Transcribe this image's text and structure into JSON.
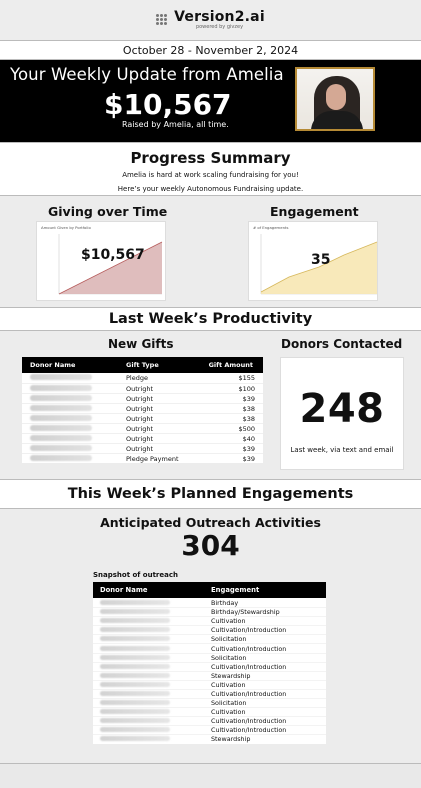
{
  "brand": {
    "name": "Version2.ai",
    "powered": "powered by",
    "partner": "givzey"
  },
  "date_range": "October 28 - November 2, 2024",
  "hero": {
    "title": "Your Weekly Update from Amelia",
    "amount": "$10,567",
    "subtitle": "Raised by Amelia, all time."
  },
  "progress": {
    "title": "Progress Summary",
    "line1": "Amelia is hard at work scaling fundraising for you!",
    "line2": "Here’s your weekly Autonomous Fundraising update."
  },
  "giving_over_time": {
    "title": "Giving over Time",
    "chart_caption": "Amount Given by Portfolio",
    "big_value": "$10,567",
    "colors": {
      "fill": "#d9b2b2",
      "stroke": "#b65c5c"
    }
  },
  "engagement": {
    "title": "Engagement",
    "chart_caption": "# of Engagements",
    "big_value": "35",
    "colors": {
      "fill": "#f7e7b3",
      "stroke": "#d6b85c"
    }
  },
  "last_week": {
    "title": "Last Week’s Productivity",
    "new_gifts": {
      "title": "New Gifts",
      "columns": [
        "Donor Name",
        "Gift Type",
        "Gift Amount"
      ],
      "rows": [
        {
          "type": "Pledge",
          "amount": "$155"
        },
        {
          "type": "Outright",
          "amount": "$100"
        },
        {
          "type": "Outright",
          "amount": "$39"
        },
        {
          "type": "Outright",
          "amount": "$38"
        },
        {
          "type": "Outright",
          "amount": "$38"
        },
        {
          "type": "Outright",
          "amount": "$500"
        },
        {
          "type": "Outright",
          "amount": "$40"
        },
        {
          "type": "Outright",
          "amount": "$39"
        },
        {
          "type": "Pledge Payment",
          "amount": "$39"
        }
      ]
    },
    "donors_contacted": {
      "title": "Donors Contacted",
      "value": "248",
      "caption": "Last week, via text and email"
    }
  },
  "this_week": {
    "title": "This Week’s Planned Engagements",
    "subtitle": "Anticipated Outreach Activities",
    "value": "304",
    "snapshot_title": "Snapshot of outreach",
    "columns": [
      "Donor Name",
      "Engagement"
    ],
    "rows": [
      {
        "engagement": "Birthday"
      },
      {
        "engagement": "Birthday/Stewardship"
      },
      {
        "engagement": "Cultivation"
      },
      {
        "engagement": "Cultivation/Introduction"
      },
      {
        "engagement": "Solicitation"
      },
      {
        "engagement": "Cultivation/Introduction"
      },
      {
        "engagement": "Solicitation"
      },
      {
        "engagement": "Cultivation/Introduction"
      },
      {
        "engagement": "Stewardship"
      },
      {
        "engagement": "Cultivation"
      },
      {
        "engagement": "Cultivation/Introduction"
      },
      {
        "engagement": "Solicitation"
      },
      {
        "engagement": "Cultivation"
      },
      {
        "engagement": "Cultivation/Introduction"
      },
      {
        "engagement": "Cultivation/Introduction"
      },
      {
        "engagement": "Stewardship"
      }
    ]
  }
}
